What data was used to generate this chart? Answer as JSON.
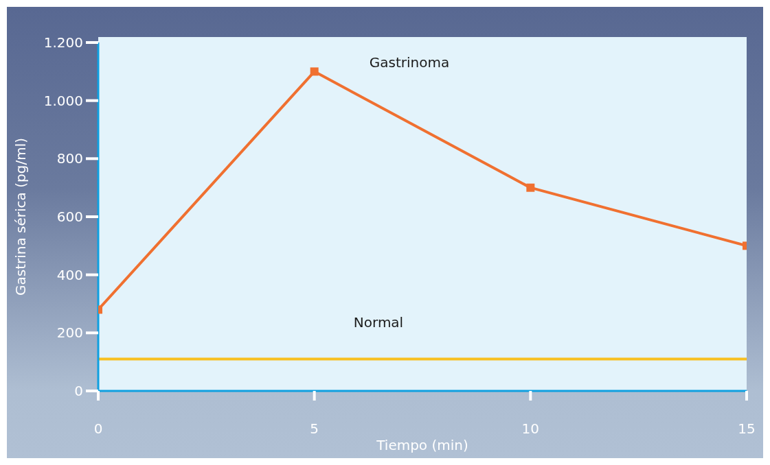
{
  "chart_data": {
    "type": "line",
    "xlabel": "Tiempo (min)",
    "ylabel": "Gastrina sérica (pg/ml)",
    "x": [
      0,
      5,
      10,
      15
    ],
    "series": [
      {
        "name": "Gastrinoma",
        "color": "#f07030",
        "values": [
          280,
          1100,
          700,
          500
        ],
        "marker": "square"
      },
      {
        "name": "Normal",
        "color": "#f8c020",
        "values": [
          110,
          110,
          110,
          110
        ],
        "marker": "none"
      }
    ],
    "xlim": [
      0,
      15
    ],
    "xticks": [
      0,
      5,
      10,
      15
    ],
    "ylim": [
      0,
      1200
    ],
    "yticks": [
      0,
      200,
      400,
      600,
      800,
      {
        "value": 1000,
        "label": "1.000"
      },
      {
        "value": 1200,
        "label": "1.200"
      }
    ],
    "grid": false,
    "legend": false,
    "line_style": "solid"
  }
}
